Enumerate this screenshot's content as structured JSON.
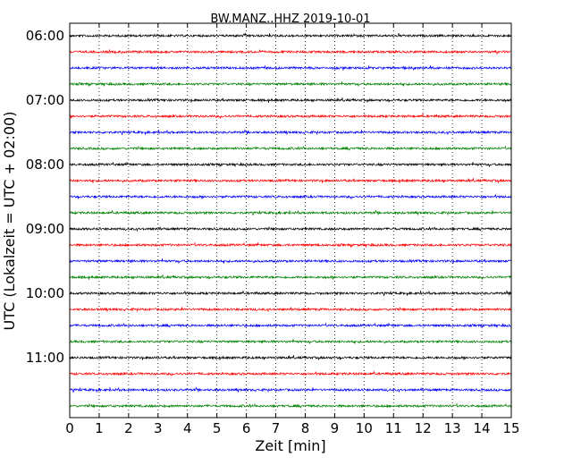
{
  "chart_data": {
    "type": "line",
    "title": "BW.MANZ..HHZ 2019-10-01",
    "xlabel": "Zeit  [min]",
    "ylabel": "UTC (Lokalzeit = UTC + 02:00)",
    "xlim": [
      0,
      15
    ],
    "x_ticks": [
      0,
      1,
      2,
      3,
      4,
      5,
      6,
      7,
      8,
      9,
      10,
      11,
      12,
      13,
      14,
      15
    ],
    "x_tick_labels": [
      "0",
      "1",
      "2",
      "3",
      "4",
      "5",
      "6",
      "7",
      "8",
      "9",
      "10",
      "11",
      "12",
      "13",
      "14",
      "15"
    ],
    "y_tick_labels": [
      "06:00",
      "07:00",
      "08:00",
      "09:00",
      "10:00",
      "11:00"
    ],
    "grid": "vertical dotted",
    "trace_colors": [
      "#000000",
      "#ff0000",
      "#0000ff",
      "#008000"
    ],
    "traces": [
      {
        "start": "06:00",
        "color": "#000000"
      },
      {
        "start": "06:15",
        "color": "#ff0000"
      },
      {
        "start": "06:30",
        "color": "#0000ff"
      },
      {
        "start": "06:45",
        "color": "#008000"
      },
      {
        "start": "07:00",
        "color": "#000000"
      },
      {
        "start": "07:15",
        "color": "#ff0000"
      },
      {
        "start": "07:30",
        "color": "#0000ff"
      },
      {
        "start": "07:45",
        "color": "#008000"
      },
      {
        "start": "08:00",
        "color": "#000000"
      },
      {
        "start": "08:15",
        "color": "#ff0000"
      },
      {
        "start": "08:30",
        "color": "#0000ff"
      },
      {
        "start": "08:45",
        "color": "#008000"
      },
      {
        "start": "09:00",
        "color": "#000000"
      },
      {
        "start": "09:15",
        "color": "#ff0000"
      },
      {
        "start": "09:30",
        "color": "#0000ff"
      },
      {
        "start": "09:45",
        "color": "#008000"
      },
      {
        "start": "10:00",
        "color": "#000000"
      },
      {
        "start": "10:15",
        "color": "#ff0000"
      },
      {
        "start": "10:30",
        "color": "#0000ff"
      },
      {
        "start": "10:45",
        "color": "#008000"
      },
      {
        "start": "11:00",
        "color": "#000000"
      },
      {
        "start": "11:15",
        "color": "#ff0000"
      },
      {
        "start": "11:30",
        "color": "#0000ff"
      },
      {
        "start": "11:45",
        "color": "#008000"
      }
    ]
  }
}
